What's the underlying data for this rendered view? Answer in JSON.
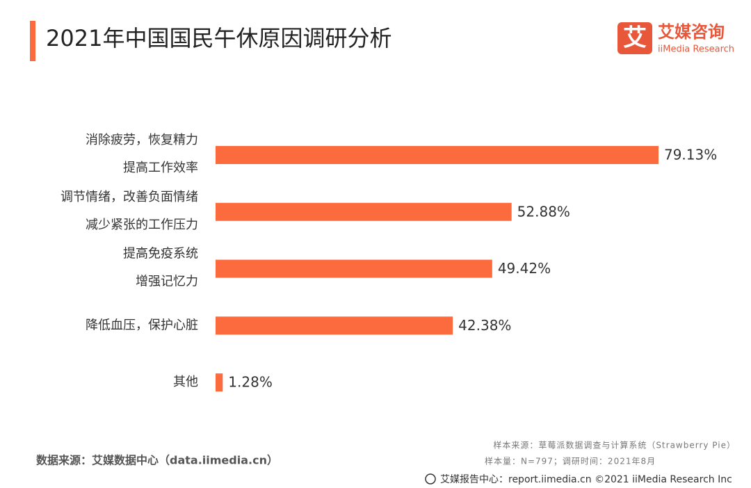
{
  "chart_data": {
    "type": "bar",
    "orientation": "horizontal",
    "title": "2021年中国国民午休原因调研分析",
    "categories": [
      [
        "消除疲劳，恢复精力",
        "提高工作效率"
      ],
      [
        "调节情绪，改善负面情绪",
        "减少紧张的工作压力"
      ],
      [
        "提高免疫系统",
        "增强记忆力"
      ],
      [
        "降低血压，保护心脏"
      ],
      [
        "其他"
      ]
    ],
    "values": [
      79.13,
      52.88,
      49.42,
      42.38,
      1.28
    ],
    "value_labels": [
      "79.13%",
      "52.88%",
      "49.42%",
      "42.38%",
      "1.28%"
    ],
    "color": "#fb6b3e"
  },
  "logo": {
    "icon": "艾",
    "name": "艾媒咨询",
    "sub": "iiMedia Research"
  },
  "footer": {
    "source": "数据来源：艾媒数据中心（data.iimedia.cn）",
    "sample_source": "样本来源：草莓派数据调查与计算系统（Strawberry Pie）",
    "sample_size": "样本量：N=797；调研时间：2021年8月",
    "report": "艾媒报告中心：report.iimedia.cn ©2021  iiMedia Research  Inc"
  }
}
